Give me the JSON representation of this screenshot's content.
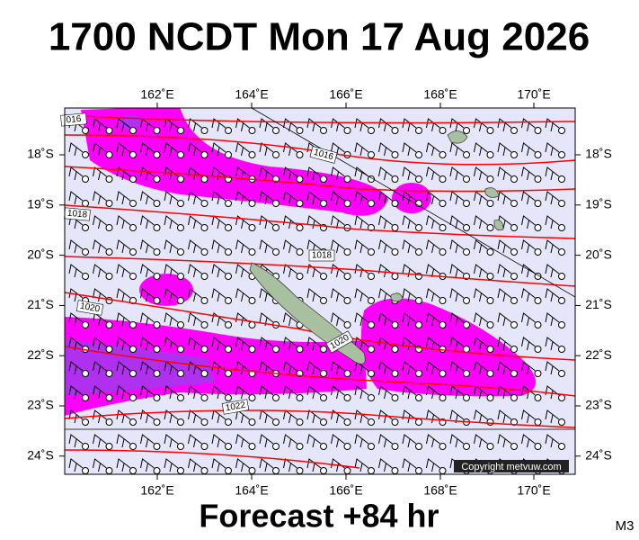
{
  "header": {
    "title": "1700 NCDT Mon 17 Aug 2026"
  },
  "map": {
    "lon_labels": [
      "162˚E",
      "164˚E",
      "166˚E",
      "168˚E",
      "170˚E"
    ],
    "lat_labels": [
      "18˚S",
      "19˚S",
      "20˚S",
      "21˚S",
      "22˚S",
      "23˚S",
      "24˚S"
    ],
    "isobar_labels": [
      "016",
      "1016",
      "1018",
      "1018",
      "1020",
      "1020",
      "1022"
    ],
    "copyright": "Copyright metvuw.com"
  },
  "footer": {
    "forecast": "Forecast +84 hr",
    "code": "M3"
  }
}
